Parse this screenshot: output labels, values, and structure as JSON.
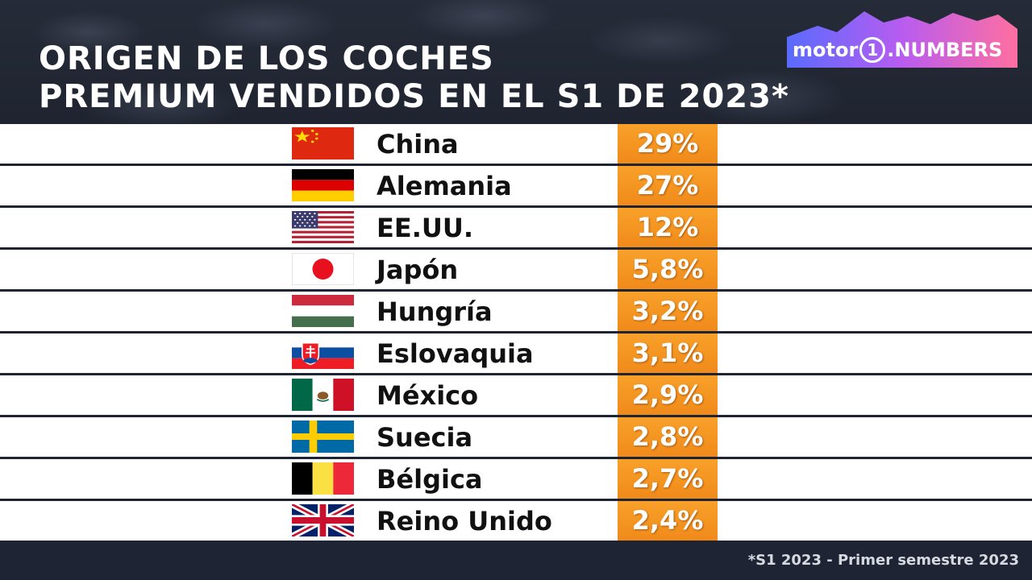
{
  "header": {
    "title_line1": "ORIGEN DE LOS COCHES",
    "title_line2": "PREMIUM VENDIDOS EN EL S1 DE 2023*"
  },
  "logo": {
    "part1": "motor",
    "part2": "1",
    "part3": ".NUMBERS"
  },
  "footer": {
    "note": "*S1 2023 - Primer semestre 2023"
  },
  "colors": {
    "accent": "#f39a22",
    "background": "#1e2433",
    "row": "#ffffff"
  },
  "chart_data": {
    "type": "table",
    "title": "ORIGEN DE LOS COCHES PREMIUM VENDIDOS EN EL S1 DE 2023*",
    "columns": [
      "",
      "",
      ""
    ],
    "rows": [
      {
        "flag": "china-flag",
        "country": "China",
        "value": 29,
        "label": "29%"
      },
      {
        "flag": "germany-flag",
        "country": "Alemania",
        "value": 27,
        "label": "27%"
      },
      {
        "flag": "usa-flag",
        "country": "EE.UU.",
        "value": 12,
        "label": "12%"
      },
      {
        "flag": "japan-flag",
        "country": "Japón",
        "value": 5.8,
        "label": "5,8%"
      },
      {
        "flag": "hungary-flag",
        "country": "Hungría",
        "value": 3.2,
        "label": "3,2%"
      },
      {
        "flag": "slovakia-flag",
        "country": "Eslovaquia",
        "value": 3.1,
        "label": "3,1%"
      },
      {
        "flag": "mexico-flag",
        "country": "México",
        "value": 2.9,
        "label": "2,9%"
      },
      {
        "flag": "sweden-flag",
        "country": "Suecia",
        "value": 2.8,
        "label": "2,8%"
      },
      {
        "flag": "belgium-flag",
        "country": "Bélgica",
        "value": 2.7,
        "label": "2,7%"
      },
      {
        "flag": "uk-flag",
        "country": "Reino Unido",
        "value": 2.4,
        "label": "2,4%"
      }
    ]
  }
}
